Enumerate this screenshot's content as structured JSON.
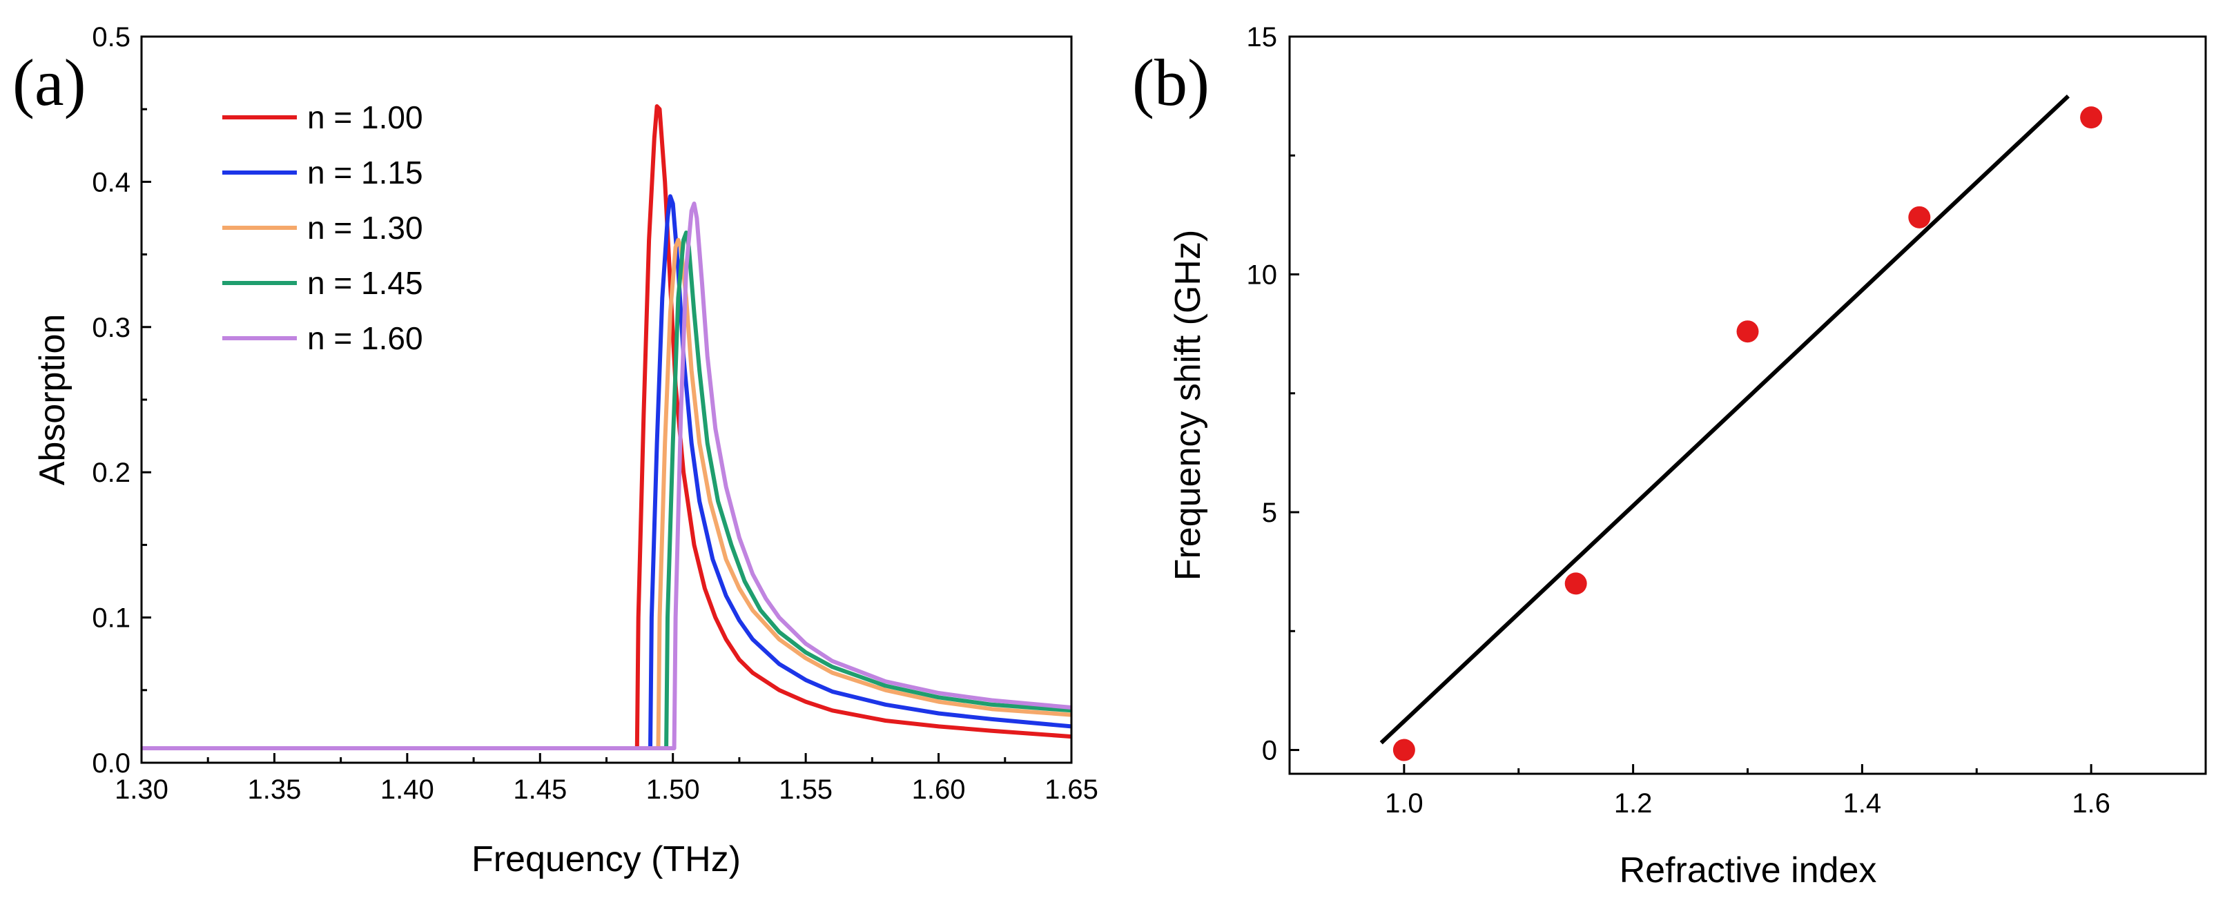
{
  "chart_data": [
    {
      "panel_label": "(a)",
      "type": "line",
      "xlabel": "Frequency (THz)",
      "ylabel": "Absorption",
      "xlim": [
        1.3,
        1.65
      ],
      "ylim": [
        0.0,
        0.5
      ],
      "xticks": [
        "1.30",
        "1.35",
        "1.40",
        "1.45",
        "1.50",
        "1.55",
        "1.60",
        "1.65"
      ],
      "yticks": [
        "0.0",
        "0.1",
        "0.2",
        "0.3",
        "0.4",
        "0.5"
      ],
      "legend_position": "top-left",
      "series": [
        {
          "name": "n = 1.00",
          "color": "#e41a1c",
          "x": [
            1.3,
            1.4865,
            1.487,
            1.489,
            1.491,
            1.493,
            1.494,
            1.495,
            1.497,
            1.499,
            1.501,
            1.504,
            1.508,
            1.512,
            1.516,
            1.52,
            1.525,
            1.53,
            1.54,
            1.55,
            1.56,
            1.58,
            1.6,
            1.62,
            1.65
          ],
          "y": [
            0.01,
            0.01,
            0.1,
            0.24,
            0.36,
            0.43,
            0.452,
            0.45,
            0.4,
            0.33,
            0.26,
            0.2,
            0.15,
            0.12,
            0.1,
            0.085,
            0.071,
            0.062,
            0.05,
            0.042,
            0.036,
            0.029,
            0.025,
            0.022,
            0.018
          ]
        },
        {
          "name": "n = 1.15",
          "color": "#1c35e8",
          "x": [
            1.3,
            1.4915,
            1.492,
            1.494,
            1.496,
            1.498,
            1.499,
            1.5,
            1.502,
            1.504,
            1.507,
            1.51,
            1.515,
            1.52,
            1.525,
            1.53,
            1.54,
            1.55,
            1.56,
            1.58,
            1.6,
            1.62,
            1.65
          ],
          "y": [
            0.01,
            0.01,
            0.1,
            0.22,
            0.32,
            0.375,
            0.39,
            0.385,
            0.34,
            0.28,
            0.22,
            0.18,
            0.14,
            0.115,
            0.098,
            0.085,
            0.068,
            0.057,
            0.049,
            0.04,
            0.034,
            0.03,
            0.025
          ]
        },
        {
          "name": "n = 1.30",
          "color": "#f5a86a",
          "x": [
            1.3,
            1.4945,
            1.495,
            1.497,
            1.499,
            1.501,
            1.502,
            1.503,
            1.505,
            1.507,
            1.51,
            1.514,
            1.52,
            1.525,
            1.53,
            1.54,
            1.55,
            1.56,
            1.58,
            1.6,
            1.62,
            1.65
          ],
          "y": [
            0.01,
            0.01,
            0.1,
            0.22,
            0.31,
            0.355,
            0.36,
            0.355,
            0.32,
            0.27,
            0.22,
            0.18,
            0.14,
            0.12,
            0.105,
            0.085,
            0.072,
            0.062,
            0.05,
            0.042,
            0.037,
            0.033
          ]
        },
        {
          "name": "n = 1.45",
          "color": "#1f9e6e",
          "x": [
            1.3,
            1.4975,
            1.498,
            1.5,
            1.502,
            1.504,
            1.505,
            1.506,
            1.508,
            1.51,
            1.513,
            1.517,
            1.522,
            1.527,
            1.533,
            1.54,
            1.55,
            1.56,
            1.58,
            1.6,
            1.62,
            1.65
          ],
          "y": [
            0.01,
            0.01,
            0.1,
            0.22,
            0.32,
            0.36,
            0.365,
            0.355,
            0.31,
            0.27,
            0.22,
            0.18,
            0.15,
            0.125,
            0.105,
            0.09,
            0.076,
            0.066,
            0.053,
            0.045,
            0.04,
            0.036
          ]
        },
        {
          "name": "n = 1.60",
          "color": "#c084e0",
          "x": [
            1.3,
            1.5005,
            1.501,
            1.503,
            1.505,
            1.507,
            1.508,
            1.509,
            1.511,
            1.513,
            1.516,
            1.52,
            1.525,
            1.53,
            1.535,
            1.54,
            1.55,
            1.56,
            1.58,
            1.6,
            1.62,
            1.65
          ],
          "y": [
            0.01,
            0.01,
            0.1,
            0.24,
            0.34,
            0.38,
            0.385,
            0.375,
            0.33,
            0.28,
            0.23,
            0.19,
            0.155,
            0.13,
            0.113,
            0.1,
            0.082,
            0.07,
            0.056,
            0.048,
            0.043,
            0.038
          ]
        }
      ]
    },
    {
      "panel_label": "(b)",
      "type": "scatter",
      "xlabel": "Refractive index",
      "ylabel": "Frequency shift (GHz)",
      "xlim": [
        0.9,
        1.7
      ],
      "ylim": [
        -0.5,
        15
      ],
      "xticks": [
        "1.0",
        "1.2",
        "1.4",
        "1.6"
      ],
      "yticks": [
        "0",
        "5",
        "10",
        "15"
      ],
      "points": {
        "color": "#e41a1c",
        "x": [
          1.0,
          1.15,
          1.3,
          1.45,
          1.6
        ],
        "y": [
          0.0,
          3.5,
          8.8,
          11.2,
          13.3
        ]
      },
      "fit_line": {
        "color": "#000000",
        "x": [
          0.98,
          1.58
        ],
        "y": [
          0.15,
          13.75
        ]
      }
    }
  ]
}
